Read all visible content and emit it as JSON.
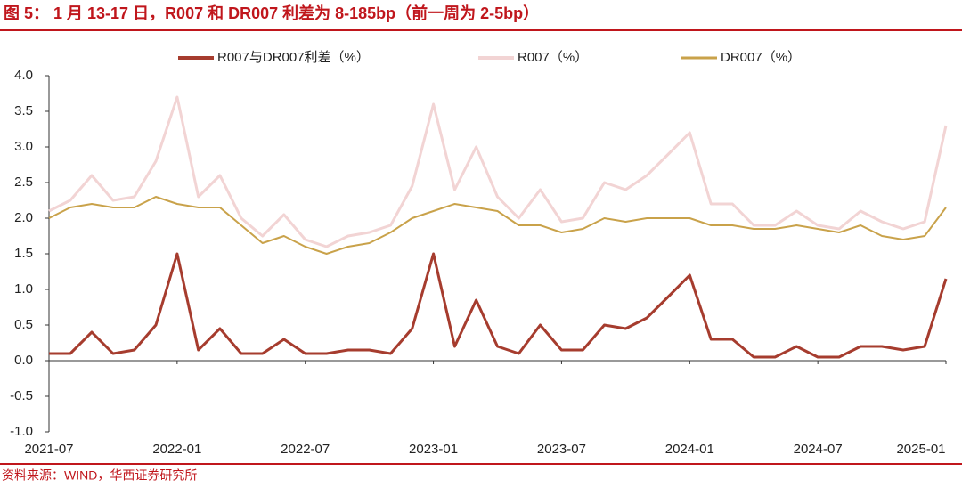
{
  "header": {
    "title": "图 5： 1 月 13-17 日，R007 和 DR007 利差为 8-185bp（前一周为 2-5bp）"
  },
  "footer": {
    "source": "资料来源：WIND，华西证券研究所"
  },
  "chart_data": {
    "type": "line",
    "x": [
      2021.5,
      2021.583,
      2021.667,
      2021.75,
      2021.833,
      2021.917,
      2022.0,
      2022.083,
      2022.167,
      2022.25,
      2022.333,
      2022.417,
      2022.5,
      2022.583,
      2022.667,
      2022.75,
      2022.833,
      2022.917,
      2023.0,
      2023.083,
      2023.167,
      2023.25,
      2023.333,
      2023.417,
      2023.5,
      2023.583,
      2023.667,
      2023.75,
      2023.833,
      2023.917,
      2024.0,
      2024.083,
      2024.167,
      2024.25,
      2024.333,
      2024.417,
      2024.5,
      2024.583,
      2024.667,
      2024.75,
      2024.833,
      2024.917,
      2025.0
    ],
    "series": [
      {
        "name": "R007与DR007利差（%）",
        "color": "#a63c2e",
        "width": 3,
        "values": [
          0.1,
          0.1,
          0.4,
          0.1,
          0.15,
          0.5,
          1.5,
          0.15,
          0.45,
          0.1,
          0.1,
          0.3,
          0.1,
          0.1,
          0.15,
          0.15,
          0.1,
          0.45,
          1.5,
          0.2,
          0.85,
          0.2,
          0.1,
          0.5,
          0.15,
          0.15,
          0.5,
          0.45,
          0.6,
          0.9,
          1.2,
          0.3,
          0.3,
          0.05,
          0.05,
          0.2,
          0.05,
          0.05,
          0.2,
          0.2,
          0.15,
          0.2,
          1.15
        ]
      },
      {
        "name": "R007（%）",
        "color": "#f2d4d4",
        "width": 3,
        "values": [
          2.1,
          2.25,
          2.6,
          2.25,
          2.3,
          2.8,
          3.7,
          2.3,
          2.6,
          2.0,
          1.75,
          2.05,
          1.7,
          1.6,
          1.75,
          1.8,
          1.9,
          2.45,
          3.6,
          2.4,
          3.0,
          2.3,
          2.0,
          2.4,
          1.95,
          2.0,
          2.5,
          2.4,
          2.6,
          2.9,
          3.2,
          2.2,
          2.2,
          1.9,
          1.9,
          2.1,
          1.9,
          1.85,
          2.1,
          1.95,
          1.85,
          1.95,
          3.3
        ]
      },
      {
        "name": "DR007（%）",
        "color": "#c9a24a",
        "width": 2,
        "values": [
          2.0,
          2.15,
          2.2,
          2.15,
          2.15,
          2.3,
          2.2,
          2.15,
          2.15,
          1.9,
          1.65,
          1.75,
          1.6,
          1.5,
          1.6,
          1.65,
          1.8,
          2.0,
          2.1,
          2.2,
          2.15,
          2.1,
          1.9,
          1.9,
          1.8,
          1.85,
          2.0,
          1.95,
          2.0,
          2.0,
          2.0,
          1.9,
          1.9,
          1.85,
          1.85,
          1.9,
          1.85,
          1.8,
          1.9,
          1.75,
          1.7,
          1.75,
          2.15
        ]
      }
    ],
    "xlim": [
      2021.5,
      2025.0
    ],
    "xticks": [
      {
        "value": 2021.5,
        "label": "2021-07"
      },
      {
        "value": 2022.0,
        "label": "2022-01"
      },
      {
        "value": 2022.5,
        "label": "2022-07"
      },
      {
        "value": 2023.0,
        "label": "2023-01"
      },
      {
        "value": 2023.5,
        "label": "2023-07"
      },
      {
        "value": 2024.0,
        "label": "2024-01"
      },
      {
        "value": 2024.5,
        "label": "2024-07"
      },
      {
        "value": 2025.0,
        "label": "2025-01"
      }
    ],
    "ylim": [
      -1,
      4
    ],
    "yticks": [
      {
        "value": -1,
        "label": "-1.0"
      },
      {
        "value": -0.5,
        "label": "-0.5"
      },
      {
        "value": 0,
        "label": "0.0"
      },
      {
        "value": 0.5,
        "label": "0.5"
      },
      {
        "value": 1,
        "label": "1.0"
      },
      {
        "value": 1.5,
        "label": "1.5"
      },
      {
        "value": 2,
        "label": "2.0"
      },
      {
        "value": 2.5,
        "label": "2.5"
      },
      {
        "value": 3,
        "label": "3.0"
      },
      {
        "value": 3.5,
        "label": "3.5"
      },
      {
        "value": 4,
        "label": "4.0"
      }
    ]
  }
}
